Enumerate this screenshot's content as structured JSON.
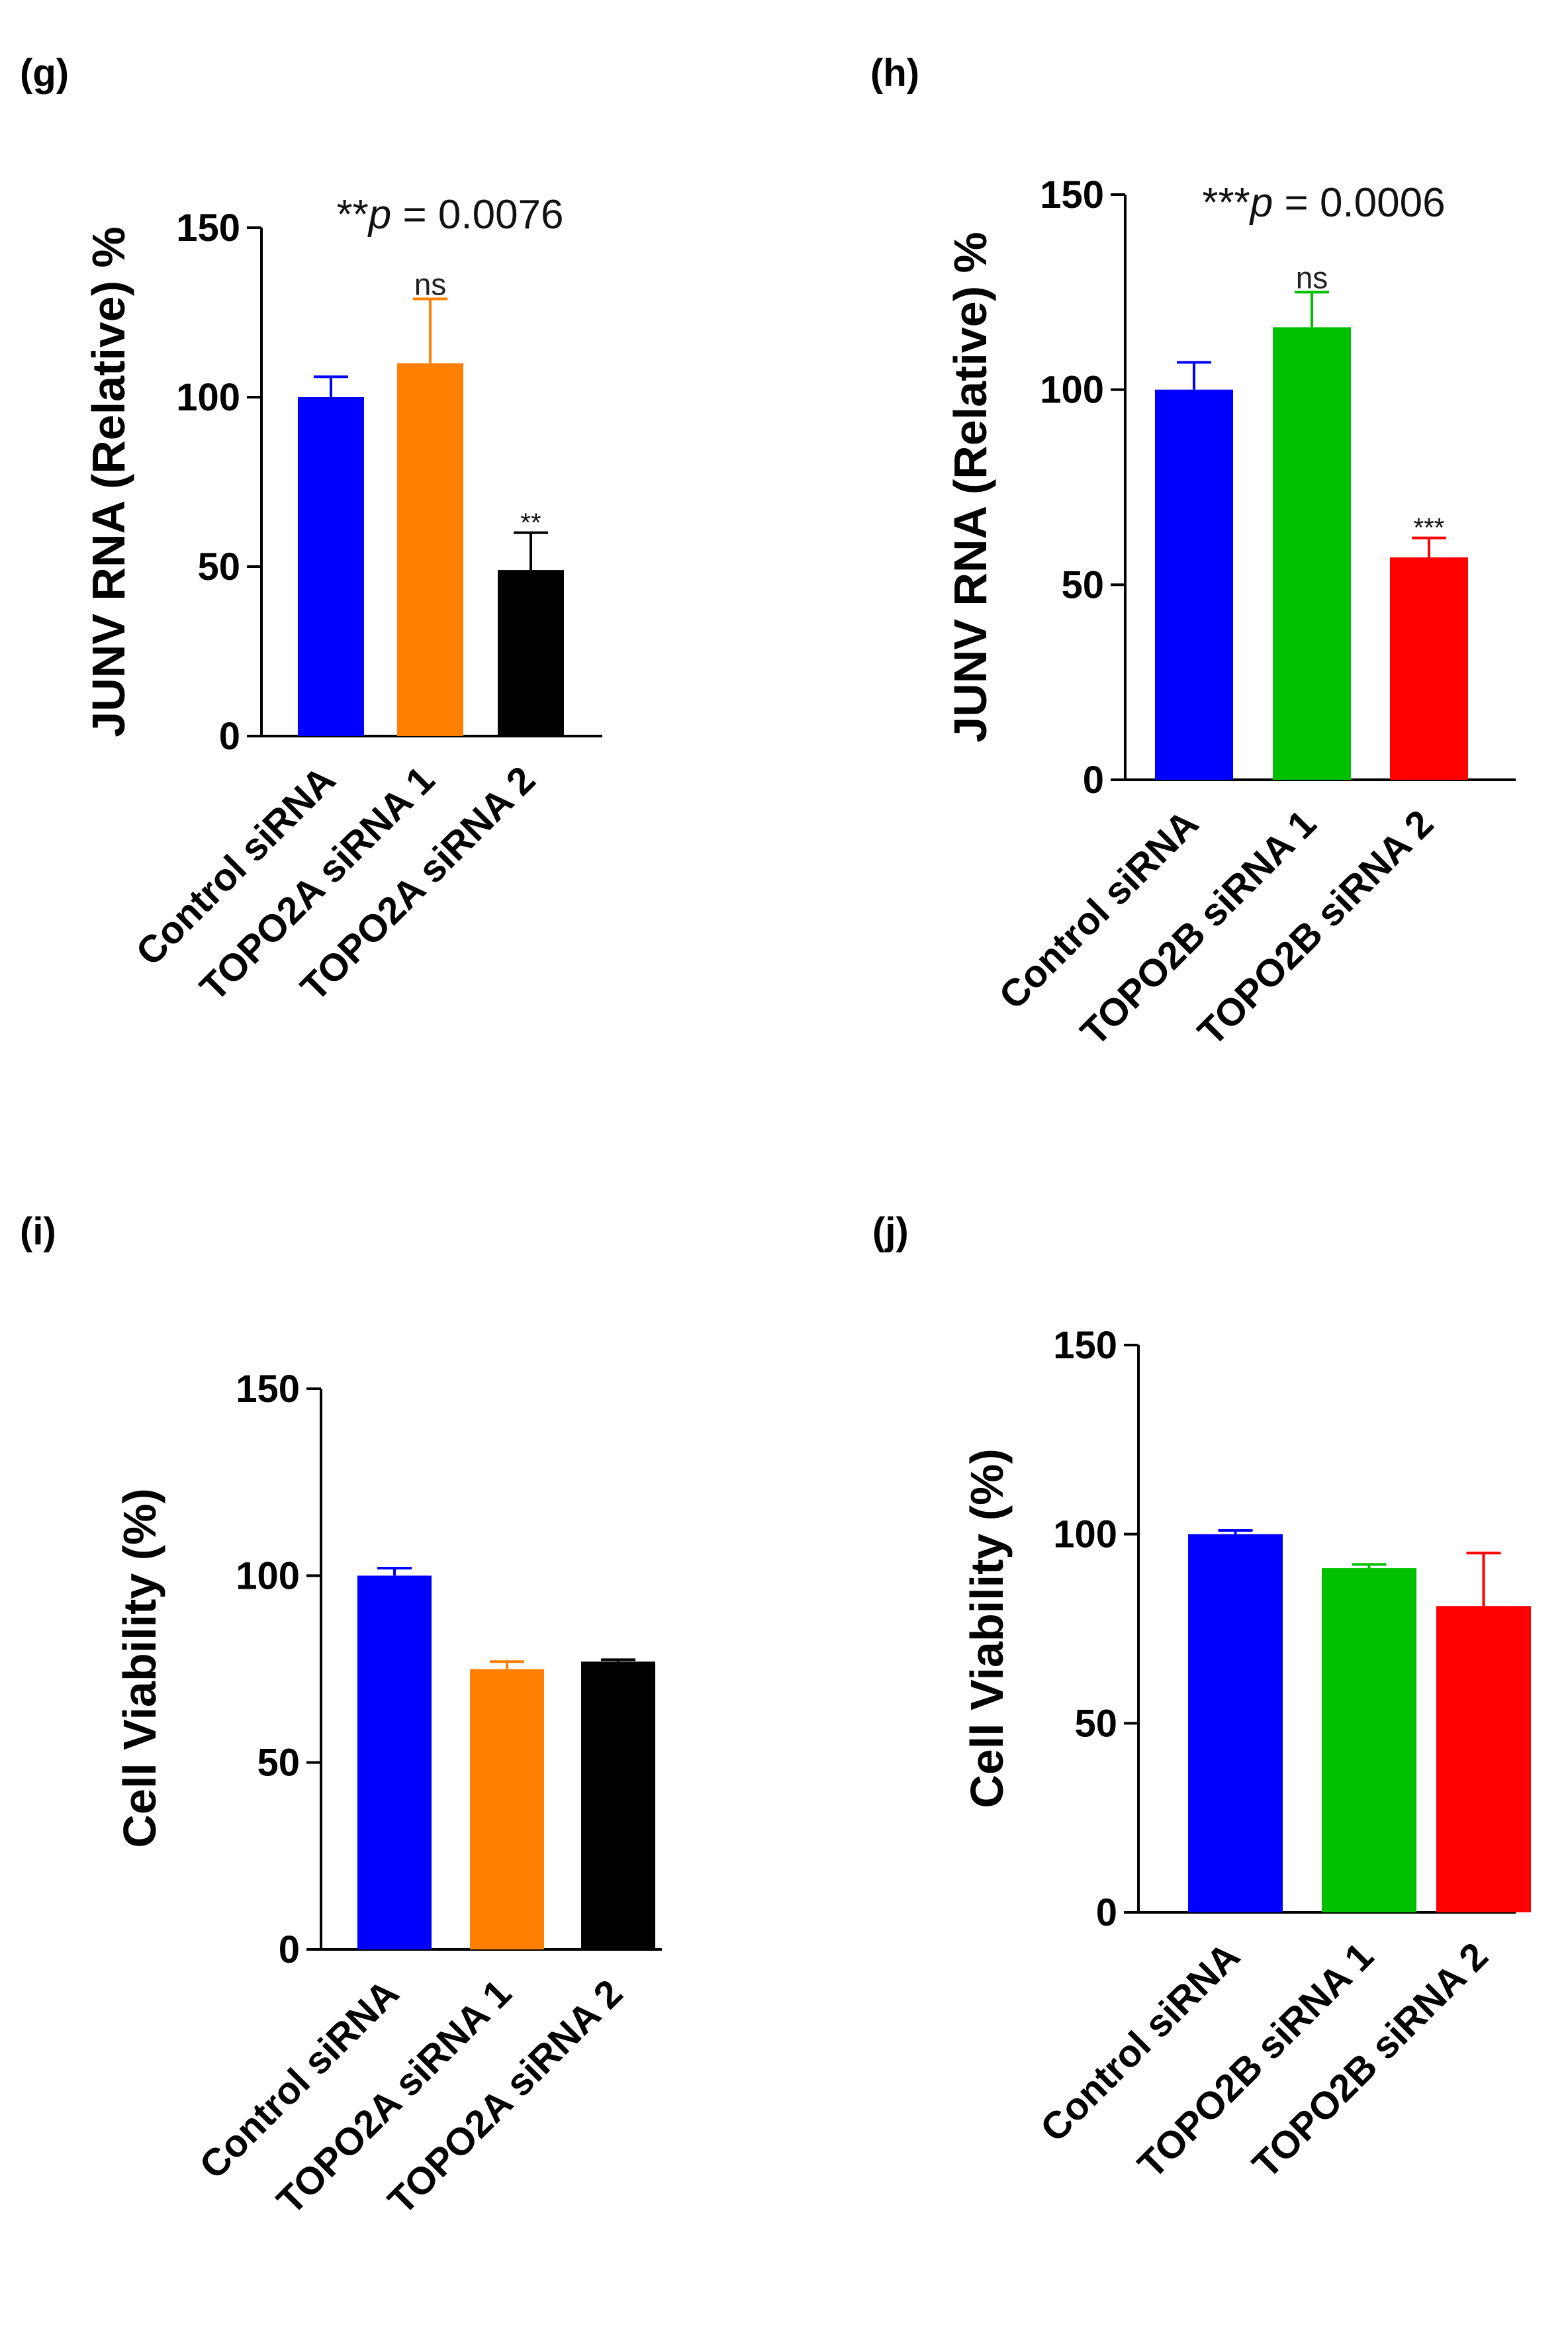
{
  "chart_data": [
    {
      "panel": "(g)",
      "type": "bar",
      "ylabel": "JUNV RNA (Relative) %",
      "ylim": [
        0,
        150
      ],
      "yticks": [
        "0",
        "50",
        "100",
        "150"
      ],
      "categories": [
        "Control siRNA",
        "TOPO2A siRNA 1",
        "TOPO2A siRNA 2"
      ],
      "values": [
        100,
        110,
        49
      ],
      "errors": [
        6,
        19,
        11
      ],
      "colors": [
        "#0000ff",
        "#ff8000",
        "#000000"
      ],
      "annotations": [
        "",
        "ns",
        "**"
      ],
      "p_prefix": "**",
      "p_var": "p",
      "p_value": " = 0.0076"
    },
    {
      "panel": "(h)",
      "type": "bar",
      "ylabel": "JUNV RNA (Relative) %",
      "ylim": [
        0,
        150
      ],
      "yticks": [
        "0",
        "50",
        "100",
        "150"
      ],
      "categories": [
        "Control siRNA",
        "TOPO2B siRNA 1",
        "TOPO2B siRNA 2"
      ],
      "values": [
        100,
        116,
        57
      ],
      "errors": [
        7,
        9,
        5
      ],
      "colors": [
        "#0000ff",
        "#00c000",
        "#ff0000"
      ],
      "annotations": [
        "",
        "ns",
        "***"
      ],
      "p_prefix": "***",
      "p_var": "p",
      "p_value": " = 0.0006"
    },
    {
      "panel": "(i)",
      "type": "bar",
      "ylabel": "Cell Viability (%)",
      "ylim": [
        0,
        150
      ],
      "yticks": [
        "0",
        "50",
        "100",
        "150"
      ],
      "categories": [
        "Control siRNA",
        "TOPO2A siRNA 1",
        "TOPO2A siRNA 2"
      ],
      "values": [
        100,
        75,
        77
      ],
      "errors": [
        2,
        2,
        0.5
      ],
      "colors": [
        "#0000ff",
        "#ff8000",
        "#000000"
      ],
      "annotations": [
        "",
        "",
        ""
      ]
    },
    {
      "panel": "(j)",
      "type": "bar",
      "ylabel": "Cell Viability (%)",
      "ylim": [
        0,
        150
      ],
      "yticks": [
        "0",
        "50",
        "100",
        "150"
      ],
      "categories": [
        "Control siRNA",
        "TOPO2B siRNA 1",
        "TOPO2B siRNA 2"
      ],
      "values": [
        100,
        91,
        81
      ],
      "errors": [
        1,
        1,
        14
      ],
      "colors": [
        "#0000ff",
        "#00c000",
        "#ff0000"
      ],
      "annotations": [
        "",
        "",
        ""
      ]
    }
  ]
}
